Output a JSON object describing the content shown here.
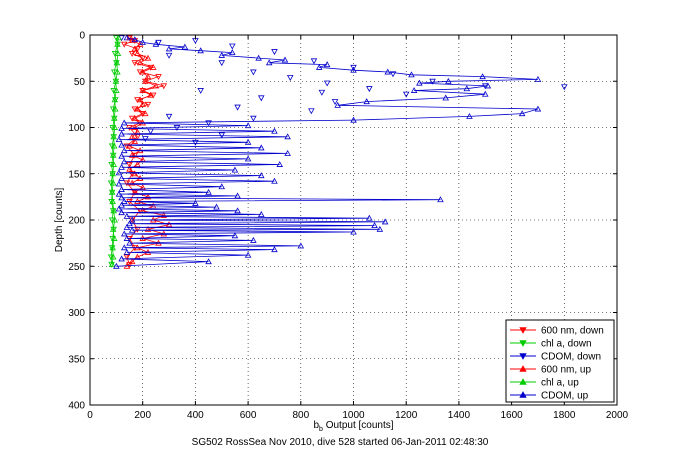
{
  "figure": {
    "caption": "SG502 RossSea Nov 2010, dive 528 started 06-Jan-2011 02:48:30"
  },
  "chart_data": {
    "type": "scatter",
    "title": "",
    "xlabel": "b_b Output [counts]",
    "xlabel_main": "b",
    "xlabel_sub": "b",
    "xlabel_rest": " Output [counts]",
    "ylabel": "Depth [counts]",
    "xlim": [
      0,
      2000
    ],
    "ylim": [
      0,
      400
    ],
    "y_reversed": true,
    "grid": true,
    "grid_style": "dotted",
    "x_ticks": [
      0,
      200,
      400,
      600,
      800,
      1000,
      1200,
      1400,
      1600,
      1800,
      2000
    ],
    "y_ticks": [
      0,
      50,
      100,
      150,
      200,
      250,
      300,
      350,
      400
    ],
    "legend_position": "bottom-right",
    "series": [
      {
        "name": "600 nm, down",
        "color": "#ff0000",
        "marker": "triangle-down",
        "line": true,
        "points": [
          [
            150,
            3
          ],
          [
            170,
            6
          ],
          [
            130,
            10
          ],
          [
            180,
            15
          ],
          [
            160,
            20
          ],
          [
            200,
            25
          ],
          [
            170,
            30
          ],
          [
            230,
            35
          ],
          [
            190,
            40
          ],
          [
            260,
            45
          ],
          [
            210,
            50
          ],
          [
            280,
            55
          ],
          [
            200,
            60
          ],
          [
            240,
            65
          ],
          [
            180,
            70
          ],
          [
            220,
            75
          ],
          [
            170,
            80
          ],
          [
            200,
            85
          ],
          [
            160,
            90
          ],
          [
            190,
            95
          ],
          [
            150,
            100
          ],
          [
            180,
            110
          ],
          [
            140,
            120
          ],
          [
            170,
            130
          ],
          [
            150,
            140
          ],
          [
            160,
            150
          ],
          [
            140,
            160
          ],
          [
            170,
            170
          ],
          [
            150,
            180
          ],
          [
            190,
            190
          ],
          [
            160,
            200
          ],
          [
            180,
            210
          ],
          [
            150,
            220
          ],
          [
            170,
            230
          ],
          [
            140,
            240
          ],
          [
            150,
            248
          ]
        ]
      },
      {
        "name": "chl a, down",
        "color": "#00cc00",
        "marker": "triangle-down",
        "line": true,
        "points": [
          [
            100,
            3
          ],
          [
            105,
            10
          ],
          [
            95,
            20
          ],
          [
            100,
            30
          ],
          [
            92,
            40
          ],
          [
            98,
            50
          ],
          [
            90,
            60
          ],
          [
            96,
            70
          ],
          [
            88,
            80
          ],
          [
            92,
            90
          ],
          [
            86,
            100
          ],
          [
            90,
            110
          ],
          [
            84,
            120
          ],
          [
            88,
            130
          ],
          [
            82,
            140
          ],
          [
            86,
            150
          ],
          [
            80,
            160
          ],
          [
            84,
            170
          ],
          [
            82,
            180
          ],
          [
            88,
            190
          ],
          [
            84,
            200
          ],
          [
            90,
            210
          ],
          [
            86,
            220
          ],
          [
            84,
            230
          ],
          [
            80,
            240
          ],
          [
            82,
            248
          ]
        ]
      },
      {
        "name": "CDOM, down",
        "color": "#0000cc",
        "marker": "triangle-down",
        "line": false,
        "points": [
          [
            120,
            3
          ],
          [
            260,
            8
          ],
          [
            400,
            6
          ],
          [
            540,
            12
          ],
          [
            700,
            18
          ],
          [
            300,
            22
          ],
          [
            850,
            28
          ],
          [
            500,
            30
          ],
          [
            1000,
            35
          ],
          [
            620,
            40
          ],
          [
            1150,
            42
          ],
          [
            760,
            46
          ],
          [
            1300,
            50
          ],
          [
            900,
            52
          ],
          [
            1500,
            55
          ],
          [
            1800,
            56
          ],
          [
            1060,
            58
          ],
          [
            420,
            60
          ],
          [
            880,
            62
          ],
          [
            1200,
            64
          ],
          [
            650,
            68
          ],
          [
            930,
            72
          ],
          [
            560,
            78
          ],
          [
            840,
            82
          ],
          [
            300,
            88
          ],
          [
            620,
            90
          ],
          [
            450,
            95
          ],
          [
            330,
            100
          ],
          [
            230,
            104
          ],
          [
            500,
            108
          ],
          [
            210,
            112
          ],
          [
            400,
            116
          ]
        ]
      },
      {
        "name": "600 nm, up",
        "color": "#ff0000",
        "marker": "triangle-up",
        "line": true,
        "points": [
          [
            140,
            250
          ],
          [
            160,
            245
          ],
          [
            180,
            240
          ],
          [
            220,
            235
          ],
          [
            180,
            230
          ],
          [
            260,
            225
          ],
          [
            200,
            220
          ],
          [
            280,
            215
          ],
          [
            220,
            210
          ],
          [
            300,
            205
          ],
          [
            240,
            200
          ],
          [
            280,
            195
          ],
          [
            200,
            190
          ],
          [
            240,
            185
          ],
          [
            180,
            180
          ],
          [
            220,
            175
          ],
          [
            170,
            170
          ],
          [
            200,
            165
          ],
          [
            160,
            160
          ],
          [
            190,
            155
          ],
          [
            170,
            150
          ],
          [
            150,
            145
          ],
          [
            180,
            140
          ],
          [
            200,
            135
          ],
          [
            160,
            130
          ],
          [
            190,
            125
          ],
          [
            150,
            120
          ],
          [
            170,
            115
          ],
          [
            160,
            110
          ],
          [
            180,
            105
          ],
          [
            170,
            100
          ],
          [
            200,
            95
          ],
          [
            170,
            90
          ],
          [
            210,
            85
          ],
          [
            180,
            80
          ],
          [
            200,
            75
          ],
          [
            190,
            70
          ],
          [
            230,
            65
          ],
          [
            200,
            60
          ],
          [
            250,
            55
          ],
          [
            210,
            50
          ],
          [
            220,
            45
          ],
          [
            200,
            40
          ],
          [
            240,
            35
          ],
          [
            190,
            30
          ],
          [
            220,
            25
          ],
          [
            180,
            20
          ],
          [
            170,
            15
          ],
          [
            190,
            10
          ],
          [
            160,
            6
          ],
          [
            150,
            3
          ]
        ]
      },
      {
        "name": "chl a, up",
        "color": "#00cc00",
        "marker": "triangle-up",
        "line": true,
        "points": [
          [
            84,
            248
          ],
          [
            88,
            240
          ],
          [
            86,
            230
          ],
          [
            92,
            220
          ],
          [
            88,
            210
          ],
          [
            94,
            200
          ],
          [
            90,
            190
          ],
          [
            86,
            180
          ],
          [
            84,
            170
          ],
          [
            88,
            160
          ],
          [
            86,
            150
          ],
          [
            90,
            140
          ],
          [
            88,
            130
          ],
          [
            92,
            120
          ],
          [
            90,
            110
          ],
          [
            94,
            100
          ],
          [
            92,
            90
          ],
          [
            96,
            80
          ],
          [
            94,
            70
          ],
          [
            100,
            60
          ],
          [
            98,
            50
          ],
          [
            104,
            40
          ],
          [
            102,
            30
          ],
          [
            106,
            20
          ],
          [
            104,
            10
          ],
          [
            108,
            3
          ]
        ]
      },
      {
        "name": "CDOM, up",
        "color": "#0000cc",
        "marker": "triangle-up",
        "line": true,
        "points": [
          [
            100,
            250
          ],
          [
            450,
            245
          ],
          [
            120,
            242
          ],
          [
            600,
            238
          ],
          [
            140,
            235
          ],
          [
            700,
            232
          ],
          [
            130,
            230
          ],
          [
            800,
            228
          ],
          [
            150,
            225
          ],
          [
            620,
            222
          ],
          [
            140,
            220
          ],
          [
            550,
            217
          ],
          [
            130,
            215
          ],
          [
            1000,
            213
          ],
          [
            160,
            211
          ],
          [
            1100,
            210
          ],
          [
            140,
            208
          ],
          [
            1080,
            206
          ],
          [
            150,
            204
          ],
          [
            1120,
            202
          ],
          [
            160,
            200
          ],
          [
            1060,
            198
          ],
          [
            140,
            196
          ],
          [
            650,
            194
          ],
          [
            120,
            192
          ],
          [
            560,
            190
          ],
          [
            110,
            188
          ],
          [
            480,
            186
          ],
          [
            120,
            184
          ],
          [
            400,
            182
          ],
          [
            130,
            180
          ],
          [
            1330,
            178
          ],
          [
            120,
            176
          ],
          [
            560,
            174
          ],
          [
            110,
            172
          ],
          [
            450,
            170
          ],
          [
            120,
            167
          ],
          [
            500,
            164
          ],
          [
            110,
            161
          ],
          [
            700,
            158
          ],
          [
            120,
            155
          ],
          [
            650,
            152
          ],
          [
            110,
            149
          ],
          [
            550,
            146
          ],
          [
            120,
            143
          ],
          [
            720,
            140
          ],
          [
            130,
            137
          ],
          [
            600,
            134
          ],
          [
            120,
            131
          ],
          [
            750,
            128
          ],
          [
            130,
            125
          ],
          [
            650,
            122
          ],
          [
            120,
            119
          ],
          [
            600,
            116
          ],
          [
            110,
            113
          ],
          [
            750,
            110
          ],
          [
            120,
            107
          ],
          [
            700,
            104
          ],
          [
            120,
            101
          ],
          [
            600,
            98
          ],
          [
            130,
            95
          ],
          [
            1000,
            92
          ],
          [
            1440,
            88
          ],
          [
            1640,
            85
          ],
          [
            1700,
            80
          ],
          [
            940,
            76
          ],
          [
            1050,
            72
          ],
          [
            1350,
            68
          ],
          [
            1500,
            64
          ],
          [
            1230,
            60
          ],
          [
            1430,
            58
          ],
          [
            1510,
            55
          ],
          [
            1250,
            52
          ],
          [
            1360,
            50
          ],
          [
            1700,
            48
          ],
          [
            1490,
            45
          ],
          [
            1220,
            43
          ],
          [
            1130,
            40
          ],
          [
            1000,
            38
          ],
          [
            870,
            35
          ],
          [
            900,
            32
          ],
          [
            680,
            30
          ],
          [
            740,
            27
          ],
          [
            640,
            25
          ],
          [
            500,
            22
          ],
          [
            540,
            19
          ],
          [
            420,
            17
          ],
          [
            300,
            15
          ],
          [
            360,
            13
          ],
          [
            250,
            10
          ],
          [
            200,
            8
          ],
          [
            170,
            5
          ],
          [
            140,
            3
          ]
        ]
      }
    ]
  }
}
